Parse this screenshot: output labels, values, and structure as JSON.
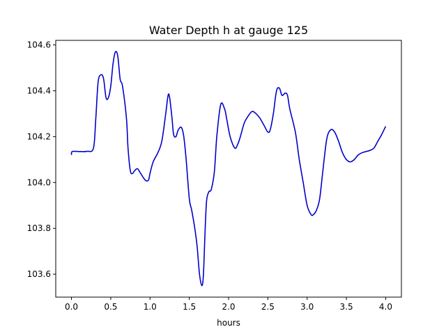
{
  "chart_data": {
    "type": "line",
    "title": "Water Depth h at gauge 125",
    "xlabel": "hours",
    "ylabel": "",
    "xlim": [
      -0.2,
      4.2
    ],
    "ylim": [
      103.5,
      104.62
    ],
    "xticks": [
      0.0,
      0.5,
      1.0,
      1.5,
      2.0,
      2.5,
      3.0,
      3.5,
      4.0
    ],
    "xtick_labels": [
      "0.0",
      "0.5",
      "1.0",
      "1.5",
      "2.0",
      "2.5",
      "3.0",
      "3.5",
      "4.0"
    ],
    "yticks": [
      103.6,
      103.8,
      104.0,
      104.2,
      104.4,
      104.6
    ],
    "ytick_labels": [
      "103.6",
      "103.8",
      "104.0",
      "104.2",
      "104.4",
      "104.6"
    ],
    "grid": false,
    "series": [
      {
        "name": "",
        "color": "#0000cc",
        "x": [
          0.0,
          0.01,
          0.1,
          0.2,
          0.28,
          0.31,
          0.34,
          0.38,
          0.41,
          0.44,
          0.47,
          0.5,
          0.53,
          0.56,
          0.59,
          0.62,
          0.65,
          0.7,
          0.72,
          0.75,
          0.78,
          0.8,
          0.84,
          0.88,
          0.94,
          0.98,
          1.0,
          1.04,
          1.1,
          1.15,
          1.2,
          1.23,
          1.25,
          1.28,
          1.3,
          1.33,
          1.36,
          1.4,
          1.43,
          1.46,
          1.5,
          1.53,
          1.57,
          1.6,
          1.63,
          1.66,
          1.68,
          1.7,
          1.72,
          1.75,
          1.78,
          1.82,
          1.85,
          1.9,
          1.95,
          1.98,
          2.02,
          2.08,
          2.12,
          2.15,
          2.2,
          2.25,
          2.3,
          2.35,
          2.4,
          2.45,
          2.5,
          2.53,
          2.57,
          2.6,
          2.62,
          2.65,
          2.68,
          2.72,
          2.75,
          2.78,
          2.85,
          2.9,
          2.95,
          3.0,
          3.05,
          3.08,
          3.12,
          3.16,
          3.2,
          3.25,
          3.3,
          3.35,
          3.4,
          3.45,
          3.5,
          3.55,
          3.6,
          3.65,
          3.7,
          3.75,
          3.8,
          3.85,
          3.9,
          3.95,
          4.0
        ],
        "y": [
          104.12,
          104.135,
          104.135,
          104.136,
          104.15,
          104.28,
          104.44,
          104.47,
          104.45,
          104.37,
          104.37,
          104.42,
          104.52,
          104.57,
          104.55,
          104.45,
          104.42,
          104.28,
          104.15,
          104.05,
          104.04,
          104.05,
          104.06,
          104.04,
          104.01,
          104.01,
          104.04,
          104.09,
          104.13,
          104.18,
          104.3,
          104.38,
          104.37,
          104.28,
          104.21,
          104.2,
          104.23,
          104.24,
          104.2,
          104.1,
          103.93,
          103.88,
          103.8,
          103.72,
          103.6,
          103.55,
          103.6,
          103.78,
          103.92,
          103.96,
          103.97,
          104.05,
          104.2,
          104.34,
          104.32,
          104.27,
          104.2,
          104.15,
          104.17,
          104.2,
          104.26,
          104.29,
          104.31,
          104.3,
          104.28,
          104.25,
          104.22,
          104.23,
          104.3,
          104.38,
          104.41,
          104.41,
          104.38,
          104.39,
          104.38,
          104.32,
          104.22,
          104.1,
          104.0,
          103.9,
          103.86,
          103.86,
          103.88,
          103.93,
          104.05,
          104.19,
          104.23,
          104.22,
          104.18,
          104.13,
          104.1,
          104.09,
          104.1,
          104.12,
          104.13,
          104.135,
          104.14,
          104.15,
          104.18,
          104.21,
          104.245
        ]
      }
    ]
  }
}
